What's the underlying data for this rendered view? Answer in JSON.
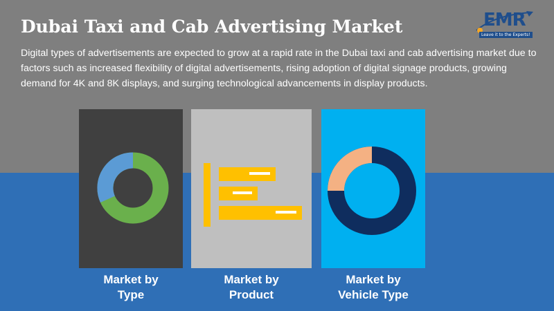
{
  "title": "Dubai Taxi and Cab Advertising Market",
  "description": "Digital types of advertisements are expected to grow at a rapid rate in the Dubai taxi and cab advertising market due to factors such as increased flexibility of digital advertisements, rising adoption of digital signage products, growing demand for 4K and 8K displays, and surging technological advancements in display products.",
  "logo": {
    "text": "EMR",
    "tagline": "Leave it to the Experts!"
  },
  "panels": [
    {
      "label_line1": "Market by",
      "label_line2": "Type",
      "icon": "donut-chart-icon"
    },
    {
      "label_line1": "Market by",
      "label_line2": "Product",
      "icon": "bar-chart-icon"
    },
    {
      "label_line1": "Market by",
      "label_line2": "Vehicle Type",
      "icon": "donut-chart-icon"
    }
  ],
  "colors": {
    "top_background": "#7f7f7f",
    "bottom_background": "#2f6fb6",
    "panel_type": "#404040",
    "panel_product": "#bfbfbf",
    "panel_vehicle": "#00b0f0",
    "donut_green": "#6ab04c",
    "donut_blue": "#5b9bd5",
    "bars_yellow": "#ffc000",
    "donut_navy": "#0f2d5e",
    "donut_peach": "#f4b183"
  }
}
